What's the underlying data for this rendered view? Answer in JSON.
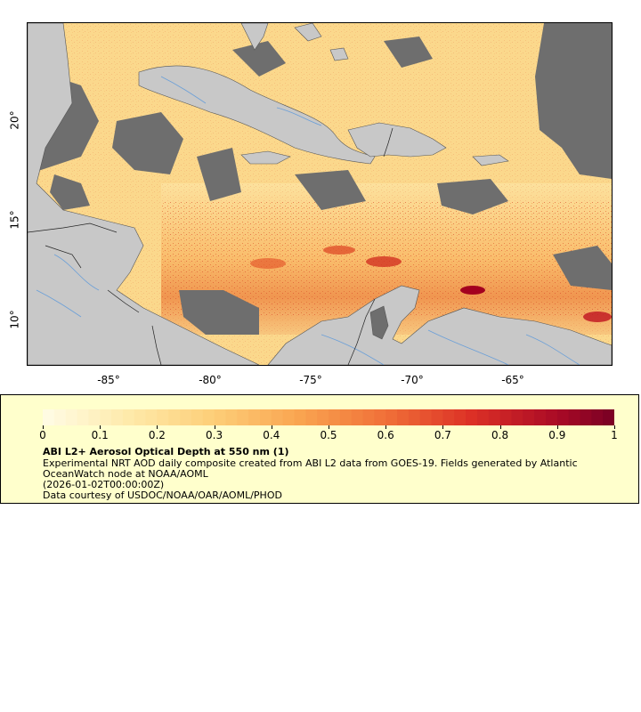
{
  "map": {
    "lat_labels": [
      "20°",
      "15°",
      "10°"
    ],
    "lon_labels": [
      "-85°",
      "-80°",
      "-75°",
      "-70°",
      "-65°"
    ]
  },
  "legend": {
    "ticks": [
      "0",
      "0.1",
      "0.2",
      "0.3",
      "0.4",
      "0.5",
      "0.6",
      "0.7",
      "0.8",
      "0.9",
      "1"
    ],
    "title": "ABI L2+ Aerosol Optical Depth at 550 nm (1)",
    "line1": "Experimental NRT AOD daily composite created from ABI L2 data from GOES-19. Fields generated by Atlantic",
    "line2": "OceanWatch node at NOAA/AOML",
    "line3": "(2026-01-02T00:00:00Z)",
    "line4": "Data courtesy of USDOC/NOAA/OAR/AOML/PHOD"
  },
  "colors": {
    "land": "#c8c8c8",
    "nodata": "#6e6e6e",
    "aod_low": "#fff5d0",
    "aod_high": "#7f0020"
  }
}
